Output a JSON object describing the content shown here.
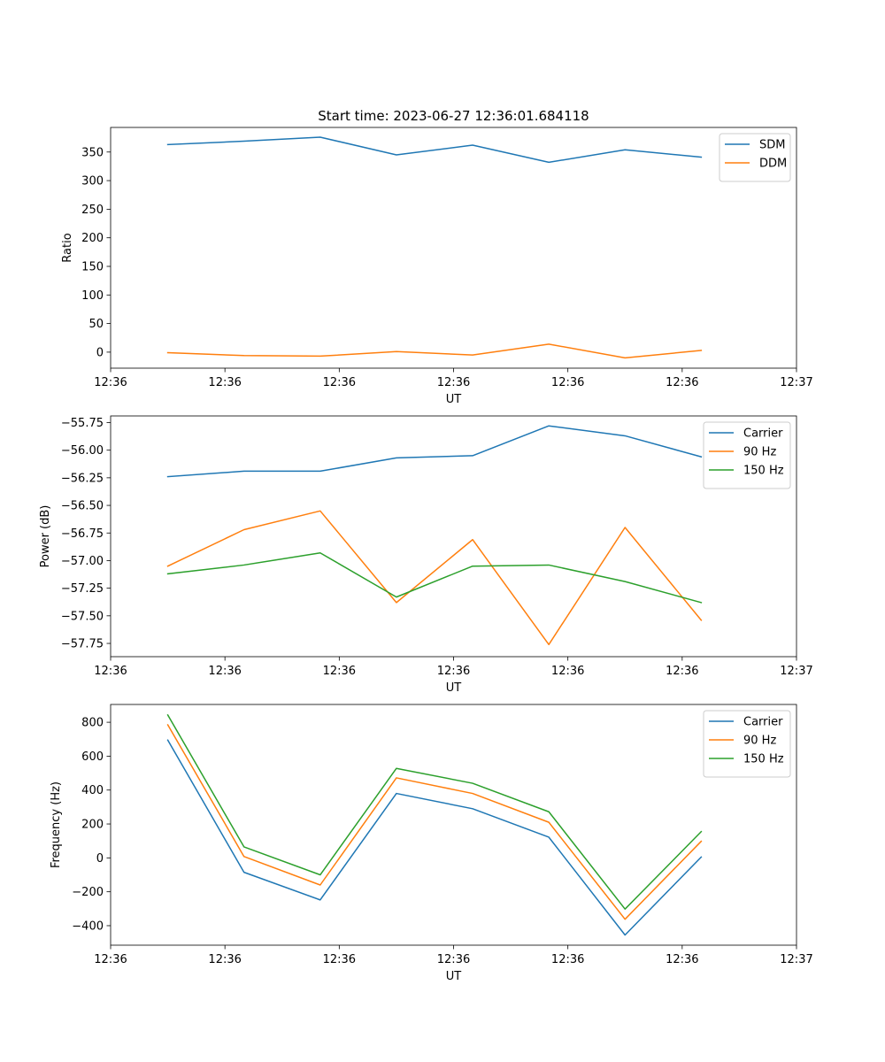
{
  "chart_data": [
    {
      "type": "line",
      "title": "Start time: 2023-06-27 12:36:01.684118",
      "xlabel": "UT",
      "ylabel": "Ratio",
      "x": [
        1.0,
        2.0,
        3.0,
        4.0,
        5.0,
        6.0,
        7.0,
        8.0
      ],
      "xlim": [
        0.25,
        9.25
      ],
      "xticks": [
        0.25,
        1.75,
        3.25,
        4.75,
        6.25,
        7.75,
        9.25
      ],
      "xtick_labels": [
        "12:36",
        "12:36",
        "12:36",
        "12:36",
        "12:36",
        "12:36",
        "12:37"
      ],
      "ylim": [
        -28,
        393
      ],
      "yticks": [
        0,
        50,
        100,
        150,
        200,
        250,
        300,
        350
      ],
      "ytick_labels": [
        "0",
        "50",
        "100",
        "150",
        "200",
        "250",
        "300",
        "350"
      ],
      "legend": "upper right",
      "series": [
        {
          "name": "SDM",
          "color": "#1f77b4",
          "values": [
            363,
            369,
            376,
            345,
            362,
            332,
            354,
            341
          ]
        },
        {
          "name": "DDM",
          "color": "#ff7f0e",
          "values": [
            -1,
            -6,
            -7,
            1,
            -5,
            14,
            -10,
            3
          ]
        }
      ]
    },
    {
      "type": "line",
      "xlabel": "UT",
      "ylabel": "Power (dB)",
      "x": [
        1.0,
        2.0,
        3.0,
        4.0,
        5.0,
        6.0,
        7.0,
        8.0
      ],
      "xlim": [
        0.25,
        9.25
      ],
      "xticks": [
        0.25,
        1.75,
        3.25,
        4.75,
        6.25,
        7.75,
        9.25
      ],
      "xtick_labels": [
        "12:36",
        "12:36",
        "12:36",
        "12:36",
        "12:36",
        "12:36",
        "12:37"
      ],
      "ylim": [
        -57.87,
        -55.69
      ],
      "yticks": [
        -57.75,
        -57.5,
        -57.25,
        -57.0,
        -56.75,
        -56.5,
        -56.25,
        -56.0,
        -55.75
      ],
      "ytick_labels": [
        "−57.75",
        "−57.50",
        "−57.25",
        "−57.00",
        "−56.75",
        "−56.50",
        "−56.25",
        "−56.00",
        "−55.75"
      ],
      "legend": "upper right",
      "series": [
        {
          "name": "Carrier",
          "color": "#1f77b4",
          "values": [
            -56.24,
            -56.19,
            -56.19,
            -56.07,
            -56.05,
            -55.78,
            -55.87,
            -56.06
          ]
        },
        {
          "name": "90 Hz",
          "color": "#ff7f0e",
          "values": [
            -57.05,
            -56.72,
            -56.55,
            -57.38,
            -56.81,
            -57.76,
            -56.7,
            -57.54
          ]
        },
        {
          "name": "150 Hz",
          "color": "#2ca02c",
          "values": [
            -57.12,
            -57.04,
            -56.93,
            -57.33,
            -57.05,
            -57.04,
            -57.19,
            -57.38
          ]
        }
      ]
    },
    {
      "type": "line",
      "xlabel": "UT",
      "ylabel": "Frequency (Hz)",
      "x": [
        1.0,
        2.0,
        3.0,
        4.0,
        5.0,
        6.0,
        7.0,
        8.0
      ],
      "xlim": [
        0.25,
        9.25
      ],
      "xticks": [
        0.25,
        1.75,
        3.25,
        4.75,
        6.25,
        7.75,
        9.25
      ],
      "xtick_labels": [
        "12:36",
        "12:36",
        "12:36",
        "12:36",
        "12:36",
        "12:36",
        "12:37"
      ],
      "ylim": [
        -515,
        905
      ],
      "yticks": [
        -400,
        -200,
        0,
        200,
        400,
        600,
        800
      ],
      "ytick_labels": [
        "−400",
        "−200",
        "0",
        "200",
        "400",
        "600",
        "800"
      ],
      "legend": "upper right",
      "series": [
        {
          "name": "Carrier",
          "color": "#1f77b4",
          "values": [
            695,
            -85,
            -248,
            380,
            290,
            122,
            -455,
            5
          ]
        },
        {
          "name": "90 Hz",
          "color": "#ff7f0e",
          "values": [
            785,
            8,
            -160,
            472,
            380,
            210,
            -362,
            98
          ]
        },
        {
          "name": "150 Hz",
          "color": "#2ca02c",
          "values": [
            843,
            65,
            -100,
            528,
            440,
            272,
            -302,
            155
          ]
        }
      ]
    }
  ]
}
